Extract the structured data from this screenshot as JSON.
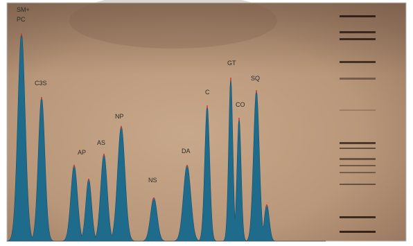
{
  "peak_labels": [
    "SM+",
    "PC",
    "C3S",
    "AP",
    "AS",
    "NP",
    "NS",
    "DA",
    "C",
    "GT",
    "CO",
    "SQ"
  ]
}
